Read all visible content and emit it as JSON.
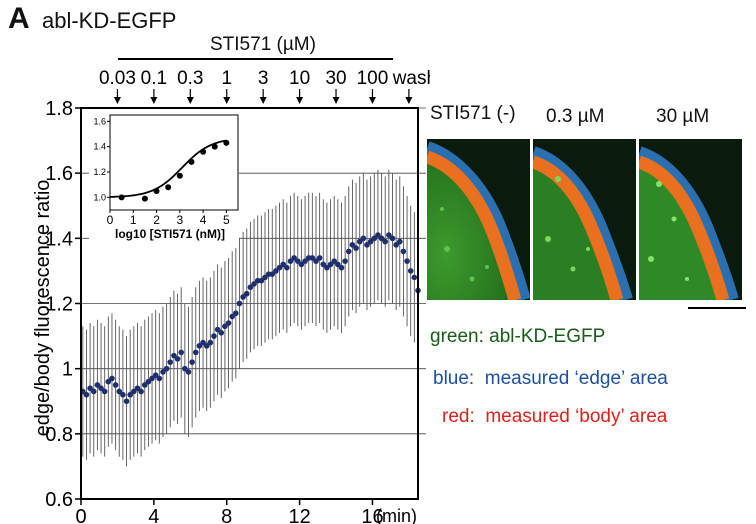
{
  "figure": {
    "panel_letter": "A",
    "construct_name": "abl-KD-EGFP",
    "treatment_label": "STI571 (µM)",
    "doses": [
      "0.03",
      "0.1",
      "0.3",
      "1",
      "3",
      "10",
      "30",
      "100",
      "wash"
    ]
  },
  "images": {
    "labels": [
      "STI571 (-)",
      "0.3 µM",
      "30 µM"
    ]
  },
  "legend": {
    "green": {
      "key": "green:",
      "text": "abl-KD-EGFP",
      "color": "#1a5c1a"
    },
    "blue": {
      "key": "blue:",
      "text": "measured ‘edge’ area",
      "color": "#1f4fa0"
    },
    "red": {
      "key": "red:",
      "text": "measured ‘body’ area",
      "color": "#e0201a"
    }
  },
  "colors": {
    "points": "#1f2f6e",
    "error_bars": "#555555"
  },
  "chart_data": [
    {
      "type": "scatter",
      "ylabel": "edge/body  fluorescence ratio",
      "xlabel_unit": "(min)",
      "xlim": [
        0,
        18.5
      ],
      "ylim": [
        0.6,
        1.8
      ],
      "xticks": [
        0,
        4,
        8,
        12,
        16
      ],
      "xtick_labels": [
        "0",
        "4",
        "8",
        "12",
        "16"
      ],
      "yticks": [
        0.6,
        0.8,
        1.0,
        1.2,
        1.4,
        1.6,
        1.8
      ],
      "ytick_labels": [
        "0.6",
        "0.8",
        "1",
        "1.2",
        "1.4",
        "1.6",
        "1.8"
      ],
      "reference_lines_y": [
        0.8,
        1.0,
        1.2,
        1.4,
        1.6,
        1.8
      ],
      "dose_addition_times": [
        2,
        4,
        6,
        8,
        10,
        12,
        14,
        16,
        18
      ],
      "error_bar_sd": 0.2,
      "x": [
        0.1,
        0.3,
        0.5,
        0.7,
        0.9,
        1.1,
        1.3,
        1.5,
        1.7,
        1.9,
        2.1,
        2.3,
        2.5,
        2.7,
        2.9,
        3.1,
        3.3,
        3.5,
        3.7,
        3.9,
        4.1,
        4.3,
        4.5,
        4.7,
        4.9,
        5.1,
        5.3,
        5.5,
        5.7,
        5.9,
        6.1,
        6.3,
        6.5,
        6.7,
        6.9,
        7.1,
        7.3,
        7.5,
        7.7,
        7.9,
        8.1,
        8.3,
        8.5,
        8.7,
        8.9,
        9.1,
        9.3,
        9.5,
        9.7,
        9.9,
        10.1,
        10.3,
        10.5,
        10.7,
        10.9,
        11.1,
        11.3,
        11.5,
        11.7,
        11.9,
        12.1,
        12.3,
        12.5,
        12.7,
        12.9,
        13.1,
        13.3,
        13.5,
        13.7,
        13.9,
        14.1,
        14.3,
        14.5,
        14.7,
        14.9,
        15.1,
        15.3,
        15.5,
        15.7,
        15.9,
        16.1,
        16.3,
        16.5,
        16.7,
        16.9,
        17.1,
        17.3,
        17.5,
        17.7,
        17.9,
        18.1,
        18.3,
        18.5
      ],
      "y": [
        0.93,
        0.92,
        0.94,
        0.93,
        0.95,
        0.94,
        0.93,
        0.96,
        0.97,
        0.95,
        0.93,
        0.92,
        0.9,
        0.92,
        0.93,
        0.94,
        0.93,
        0.95,
        0.96,
        0.97,
        0.98,
        0.97,
        0.99,
        1.0,
        1.02,
        1.04,
        1.03,
        1.05,
        1.0,
        0.99,
        1.02,
        1.05,
        1.07,
        1.08,
        1.07,
        1.08,
        1.1,
        1.12,
        1.11,
        1.13,
        1.14,
        1.16,
        1.17,
        1.2,
        1.22,
        1.23,
        1.25,
        1.26,
        1.27,
        1.27,
        1.28,
        1.29,
        1.29,
        1.3,
        1.31,
        1.32,
        1.31,
        1.33,
        1.34,
        1.33,
        1.32,
        1.33,
        1.34,
        1.34,
        1.33,
        1.34,
        1.32,
        1.31,
        1.32,
        1.33,
        1.32,
        1.31,
        1.33,
        1.36,
        1.38,
        1.37,
        1.39,
        1.4,
        1.38,
        1.39,
        1.4,
        1.41,
        1.4,
        1.39,
        1.41,
        1.4,
        1.38,
        1.39,
        1.36,
        1.33,
        1.3,
        1.28,
        1.24
      ]
    },
    {
      "type": "scatter",
      "subtype": "dose-response inset with sigmoid fit",
      "xlabel": "log10 [STI571 (nM)]",
      "xlim": [
        0,
        5.5
      ],
      "ylim": [
        0.9,
        1.65
      ],
      "xticks": [
        0,
        1,
        2,
        3,
        4,
        5
      ],
      "xtick_labels": [
        "0",
        "1",
        "2",
        "3",
        "4",
        "5"
      ],
      "yticks": [
        1.0,
        1.2,
        1.4,
        1.6
      ],
      "ytick_labels": [
        "1.0",
        "1.2",
        "1.4",
        "1.6"
      ],
      "x": [
        0.5,
        1.5,
        2.0,
        2.5,
        3.0,
        3.5,
        4.0,
        4.5,
        5.0
      ],
      "y": [
        1.0,
        0.99,
        1.05,
        1.08,
        1.17,
        1.28,
        1.36,
        1.4,
        1.43
      ],
      "fit": {
        "bottom": 1.0,
        "top": 1.47,
        "x50": 3.1,
        "slope": 1.6
      }
    }
  ]
}
